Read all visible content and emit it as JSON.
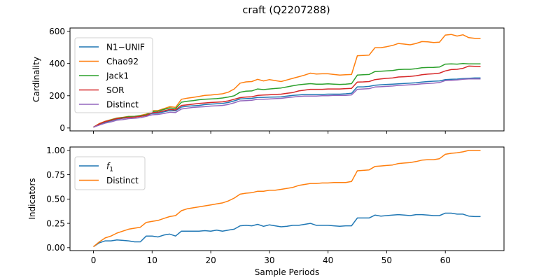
{
  "title": "craft (Q2207288)",
  "chart_data": [
    {
      "type": "line",
      "title": "",
      "xlabel": "",
      "ylabel": "Cardinality",
      "xlim": [
        -4,
        70
      ],
      "ylim": [
        -18,
        620
      ],
      "xticks": [
        0,
        10,
        20,
        30,
        40,
        50,
        60
      ],
      "yticks": [
        0,
        200,
        400,
        600
      ],
      "ytick_labels": [
        "0",
        "200",
        "400",
        "600"
      ],
      "legend": "upper-left",
      "x": [
        0,
        1,
        2,
        3,
        4,
        5,
        6,
        7,
        8,
        9,
        10,
        11,
        12,
        13,
        14,
        15,
        16,
        17,
        18,
        19,
        20,
        21,
        22,
        23,
        24,
        25,
        26,
        27,
        28,
        29,
        30,
        31,
        32,
        33,
        34,
        35,
        36,
        37,
        38,
        39,
        40,
        41,
        42,
        43,
        44,
        45,
        46,
        47,
        48,
        49,
        50,
        51,
        52,
        53,
        54,
        55,
        56,
        57,
        58,
        59,
        60,
        61,
        62,
        63,
        64,
        65,
        66
      ],
      "series": [
        {
          "name": "N1−UNIF",
          "color": "#1f77b4",
          "values": [
            5,
            22,
            35,
            45,
            55,
            60,
            65,
            68,
            72,
            78,
            90,
            92,
            100,
            108,
            106,
            130,
            135,
            138,
            140,
            145,
            148,
            150,
            152,
            158,
            168,
            180,
            182,
            184,
            190,
            190,
            191,
            192,
            193,
            198,
            202,
            205,
            208,
            208,
            208,
            208,
            210,
            210,
            210,
            212,
            215,
            255,
            255,
            258,
            265,
            268,
            270,
            272,
            274,
            276,
            278,
            280,
            285,
            288,
            290,
            292,
            300,
            302,
            303,
            306,
            308,
            310,
            310
          ]
        },
        {
          "name": "Chao92",
          "color": "#ff7f0e",
          "values": [
            5,
            28,
            42,
            52,
            62,
            66,
            72,
            72,
            78,
            86,
            108,
            108,
            120,
            132,
            128,
            178,
            185,
            190,
            196,
            202,
            204,
            208,
            212,
            222,
            242,
            278,
            286,
            288,
            302,
            292,
            300,
            294,
            288,
            298,
            308,
            318,
            328,
            340,
            335,
            336,
            336,
            332,
            328,
            330,
            332,
            448,
            450,
            452,
            498,
            498,
            504,
            512,
            524,
            520,
            516,
            524,
            536,
            534,
            530,
            532,
            576,
            580,
            570,
            578,
            560,
            556,
            556
          ]
        },
        {
          "name": "Jack1",
          "color": "#2ca02c",
          "values": [
            5,
            25,
            40,
            50,
            60,
            65,
            70,
            72,
            76,
            82,
            102,
            105,
            115,
            125,
            120,
            160,
            166,
            170,
            175,
            178,
            180,
            182,
            186,
            192,
            200,
            222,
            228,
            230,
            242,
            238,
            242,
            245,
            248,
            255,
            262,
            268,
            272,
            275,
            272,
            272,
            274,
            272,
            270,
            272,
            275,
            328,
            330,
            332,
            350,
            352,
            354,
            356,
            362,
            364,
            364,
            368,
            374,
            375,
            376,
            378,
            396,
            398,
            396,
            400,
            398,
            398,
            398
          ]
        },
        {
          "name": "SOR",
          "color": "#d62728",
          "values": [
            5,
            25,
            40,
            48,
            58,
            62,
            66,
            68,
            72,
            78,
            95,
            98,
            106,
            115,
            112,
            140,
            144,
            148,
            152,
            155,
            158,
            160,
            162,
            168,
            178,
            188,
            192,
            194,
            202,
            204,
            206,
            208,
            210,
            215,
            220,
            230,
            235,
            240,
            240,
            240,
            242,
            242,
            242,
            244,
            246,
            285,
            286,
            288,
            300,
            304,
            308,
            310,
            316,
            318,
            320,
            324,
            330,
            334,
            336,
            340,
            354,
            362,
            364,
            370,
            384,
            382,
            380
          ]
        },
        {
          "name": "Distinct",
          "color": "#9467bd",
          "values": [
            5,
            18,
            30,
            38,
            48,
            52,
            58,
            60,
            64,
            72,
            82,
            84,
            90,
            98,
            96,
            118,
            123,
            128,
            130,
            132,
            136,
            138,
            140,
            146,
            156,
            168,
            170,
            172,
            178,
            178,
            180,
            182,
            184,
            188,
            192,
            196,
            198,
            198,
            198,
            200,
            200,
            202,
            202,
            202,
            205,
            240,
            242,
            244,
            254,
            256,
            258,
            260,
            264,
            266,
            268,
            270,
            274,
            276,
            278,
            282,
            294,
            296,
            298,
            302,
            304,
            304,
            304
          ]
        }
      ]
    },
    {
      "type": "line",
      "title": "",
      "xlabel": "Sample Periods",
      "ylabel": "Indicators",
      "xlim": [
        -4,
        70
      ],
      "ylim": [
        -0.03,
        1.035
      ],
      "xticks": [
        0,
        10,
        20,
        30,
        40,
        50,
        60
      ],
      "yticks": [
        0,
        0.25,
        0.5,
        0.75,
        1.0
      ],
      "ytick_labels": [
        "0.00",
        "0.25",
        "0.50",
        "0.75",
        "1.00"
      ],
      "legend": "upper-left",
      "x": [
        0,
        1,
        2,
        3,
        4,
        5,
        6,
        7,
        8,
        9,
        10,
        11,
        12,
        13,
        14,
        15,
        16,
        17,
        18,
        19,
        20,
        21,
        22,
        23,
        24,
        25,
        26,
        27,
        28,
        29,
        30,
        31,
        32,
        33,
        34,
        35,
        36,
        37,
        38,
        39,
        40,
        41,
        42,
        43,
        44,
        45,
        46,
        47,
        48,
        49,
        50,
        51,
        52,
        53,
        54,
        55,
        56,
        57,
        58,
        59,
        60,
        61,
        62,
        63,
        64,
        65,
        66
      ],
      "series": [
        {
          "name": "f1",
          "display": {
            "base": "f",
            "sub": "1"
          },
          "color": "#1f77b4",
          "values": [
            0.01,
            0.05,
            0.07,
            0.07,
            0.08,
            0.075,
            0.07,
            0.06,
            0.06,
            0.12,
            0.12,
            0.11,
            0.13,
            0.14,
            0.12,
            0.17,
            0.17,
            0.17,
            0.17,
            0.175,
            0.17,
            0.18,
            0.17,
            0.18,
            0.19,
            0.225,
            0.23,
            0.225,
            0.24,
            0.22,
            0.235,
            0.225,
            0.215,
            0.22,
            0.23,
            0.23,
            0.24,
            0.25,
            0.23,
            0.23,
            0.23,
            0.225,
            0.22,
            0.225,
            0.225,
            0.305,
            0.305,
            0.305,
            0.335,
            0.325,
            0.33,
            0.335,
            0.34,
            0.335,
            0.33,
            0.34,
            0.34,
            0.335,
            0.33,
            0.33,
            0.355,
            0.355,
            0.345,
            0.345,
            0.325,
            0.32,
            0.32
          ]
        },
        {
          "name": "Distinct",
          "color": "#ff7f0e",
          "values": [
            0.01,
            0.06,
            0.1,
            0.12,
            0.15,
            0.17,
            0.19,
            0.2,
            0.21,
            0.26,
            0.27,
            0.28,
            0.3,
            0.32,
            0.33,
            0.38,
            0.4,
            0.41,
            0.42,
            0.43,
            0.44,
            0.45,
            0.46,
            0.48,
            0.51,
            0.55,
            0.56,
            0.565,
            0.58,
            0.58,
            0.59,
            0.59,
            0.6,
            0.61,
            0.62,
            0.64,
            0.65,
            0.66,
            0.66,
            0.665,
            0.665,
            0.67,
            0.67,
            0.67,
            0.68,
            0.79,
            0.795,
            0.8,
            0.835,
            0.84,
            0.845,
            0.85,
            0.865,
            0.87,
            0.875,
            0.885,
            0.9,
            0.905,
            0.905,
            0.915,
            0.96,
            0.97,
            0.975,
            0.985,
            1.0,
            1.0,
            1.0
          ]
        }
      ]
    }
  ]
}
